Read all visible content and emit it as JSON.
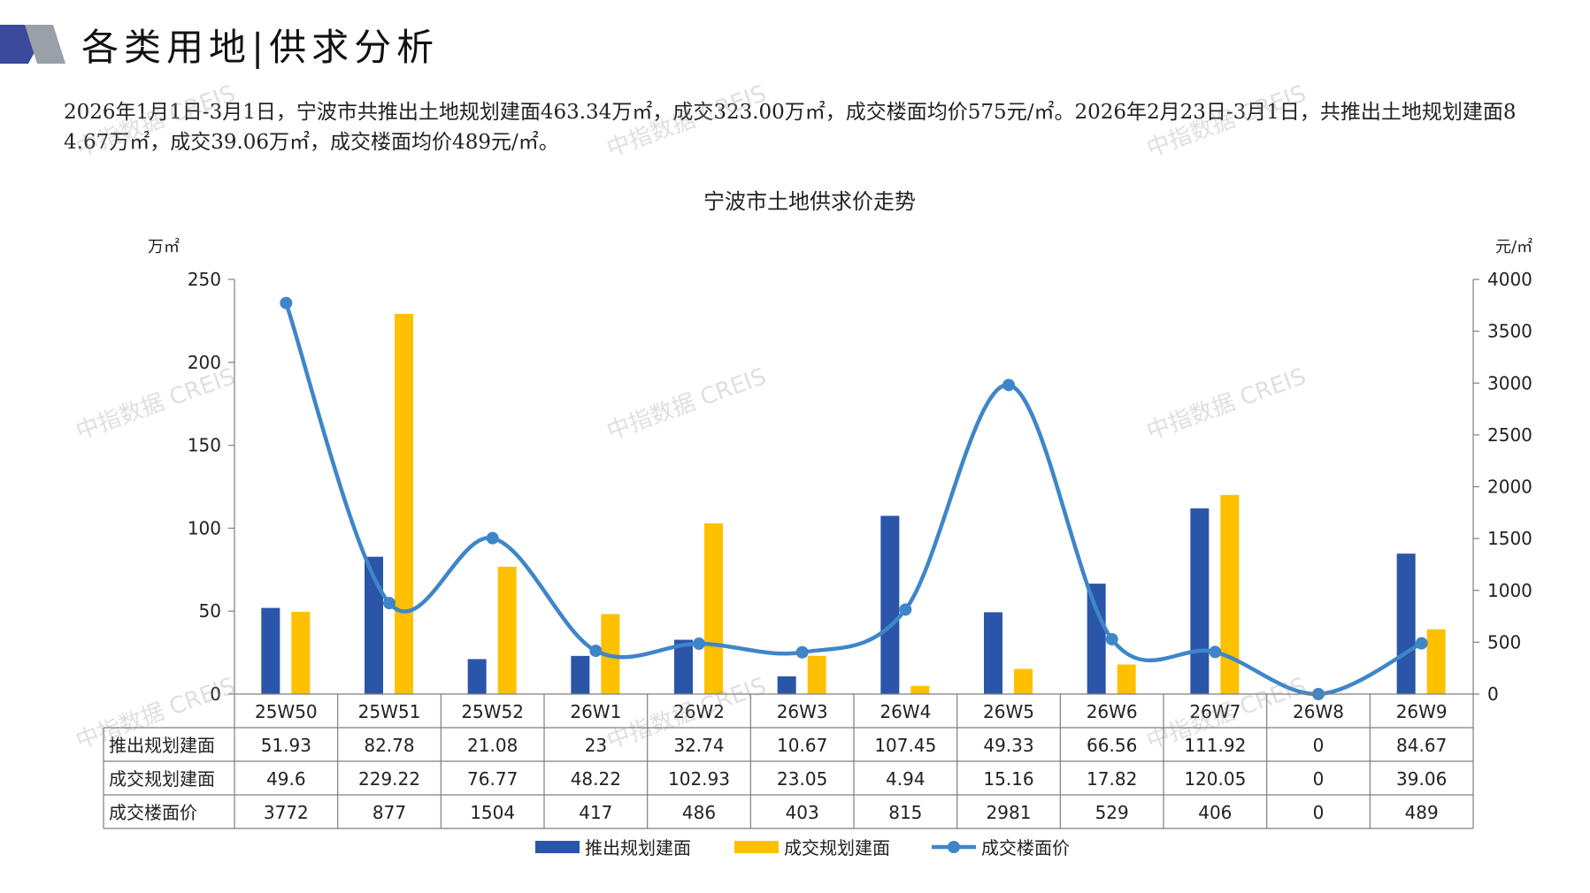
{
  "page": {
    "title": "各类用地|供求分析",
    "summary": "2026年1月1日-3月1日，宁波市共推出土地规划建面463.34万㎡，成交323.00万㎡，成交楼面均价575元/㎡。2026年2月23日-3月1日，共推出土地规划建面84.67万㎡，成交39.06万㎡，成交楼面均价489元/㎡。",
    "watermark": "中指数据 CREIS"
  },
  "colors": {
    "bar1": "#2B55A8",
    "bar2": "#FFC000",
    "line": "#3E86C9",
    "logo_dark": "#3B4A9C",
    "logo_grey": "#9AA0AA",
    "grid": "#7f7f7f"
  },
  "chart_data": {
    "type": "bar",
    "title": "宁波市土地供求价走势",
    "ylabel_left": "万㎡",
    "ylabel_right": "元/㎡",
    "ylim_left": [
      0,
      250
    ],
    "ylim_right": [
      0,
      4000
    ],
    "yticks_left": [
      0,
      50,
      100,
      150,
      200,
      250
    ],
    "yticks_right": [
      0,
      500,
      1000,
      1500,
      2000,
      2500,
      3000,
      3500,
      4000
    ],
    "categories": [
      "25W50",
      "25W51",
      "25W52",
      "26W1",
      "26W2",
      "26W3",
      "26W4",
      "26W5",
      "26W6",
      "26W7",
      "26W8",
      "26W9"
    ],
    "series": [
      {
        "name": "推出规划建面",
        "type": "bar",
        "axis": "left",
        "values": [
          51.93,
          82.78,
          21.08,
          23,
          32.74,
          10.67,
          107.45,
          49.33,
          66.56,
          111.92,
          0,
          84.67
        ],
        "labels": [
          "51.93",
          "82.78",
          "21.08",
          "23",
          "32.74",
          "10.67",
          "107.45",
          "49.33",
          "66.56",
          "111.92",
          "0",
          "84.67"
        ]
      },
      {
        "name": "成交规划建面",
        "type": "bar",
        "axis": "left",
        "values": [
          49.6,
          229.22,
          76.77,
          48.22,
          102.93,
          23.05,
          4.94,
          15.16,
          17.82,
          120.05,
          0,
          39.06
        ],
        "labels": [
          "49.6",
          "229.22",
          "76.77",
          "48.22",
          "102.93",
          "23.05",
          "4.94",
          "15.16",
          "17.82",
          "120.05",
          "0",
          "39.06"
        ]
      },
      {
        "name": "成交楼面价",
        "type": "line",
        "axis": "right",
        "values": [
          3772,
          877,
          1504,
          417,
          486,
          403,
          815,
          2981,
          529,
          406,
          0,
          489
        ],
        "labels": [
          "3772",
          "877",
          "1504",
          "417",
          "486",
          "403",
          "815",
          "2981",
          "529",
          "406",
          "0",
          "489"
        ]
      }
    ],
    "legend_position": "bottom",
    "data_table": true
  }
}
